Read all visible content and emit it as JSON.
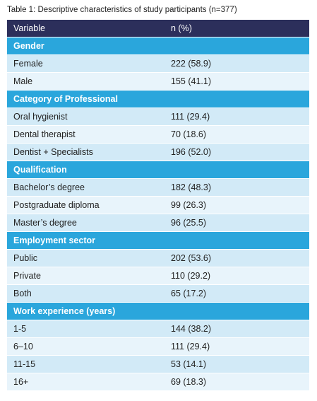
{
  "caption": "Table 1: Descriptive characteristics of study participants (n=377)",
  "table": {
    "header": [
      "Variable",
      "n (%)"
    ],
    "sections": [
      {
        "title": "Gender",
        "rows": [
          [
            "Female",
            "222 (58.9)"
          ],
          [
            "Male",
            "155 (41.1)"
          ]
        ]
      },
      {
        "title": "Category of Professional",
        "rows": [
          [
            "Oral hygienist",
            "111 (29.4)"
          ],
          [
            "Dental therapist",
            "70 (18.6)"
          ],
          [
            "Dentist + Specialists",
            "196 (52.0)"
          ]
        ]
      },
      {
        "title": "Qualification",
        "rows": [
          [
            "Bachelor’s degree",
            "182 (48.3)"
          ],
          [
            "Postgraduate diploma",
            "99 (26.3)"
          ],
          [
            "Master’s degree",
            "96 (25.5)"
          ]
        ]
      },
      {
        "title": "Employment sector",
        "rows": [
          [
            "Public",
            "202 (53.6)"
          ],
          [
            "Private",
            "110 (29.2)"
          ],
          [
            "Both",
            "65 (17.2)"
          ]
        ]
      },
      {
        "title": "Work experience (years)",
        "rows": [
          [
            "1-5",
            "144 (38.2)"
          ],
          [
            "6–10",
            "111 (29.4)"
          ],
          [
            "11-15",
            "53 (14.1)"
          ],
          [
            "16+",
            "69 (18.3)"
          ]
        ]
      }
    ]
  }
}
